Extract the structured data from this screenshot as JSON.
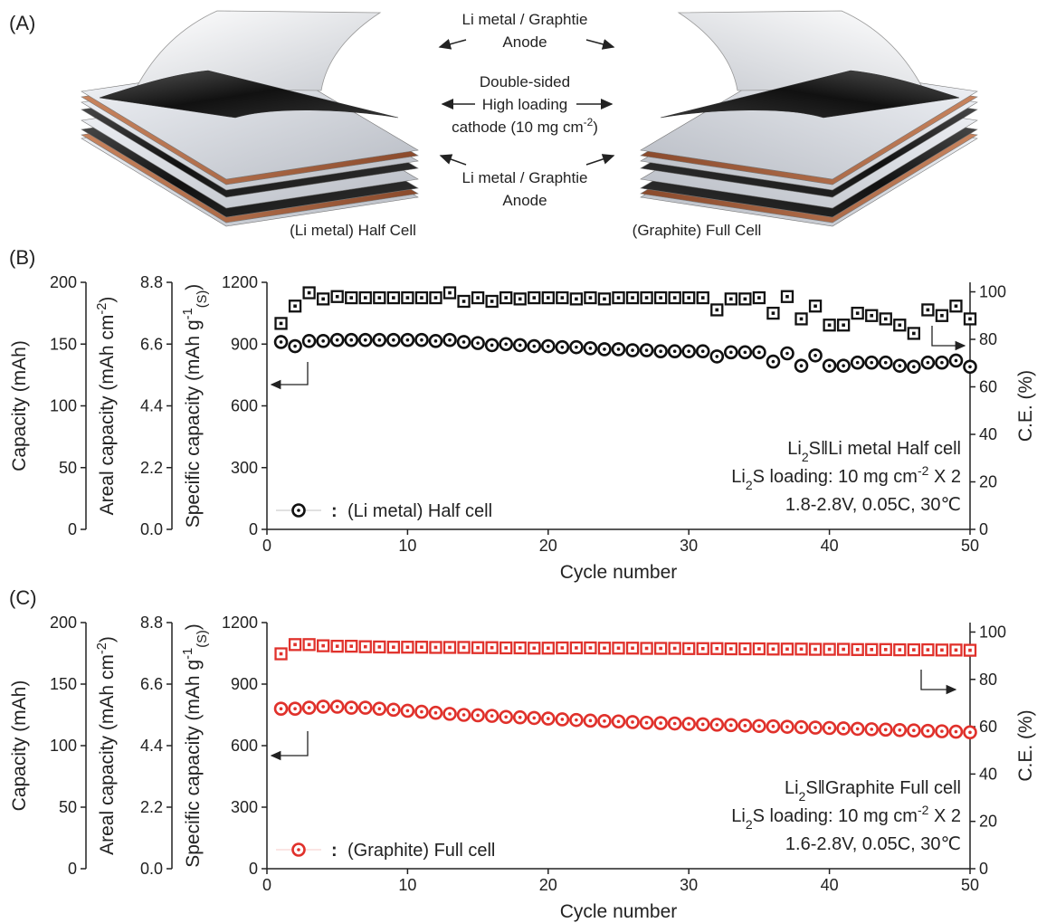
{
  "illustration": {
    "panel": "(A)",
    "top_label": [
      "Li metal / Graphtie",
      "Anode"
    ],
    "middle_label": [
      [
        {
          "text": "Double-sided"
        }
      ],
      [
        {
          "text": "High loading"
        }
      ],
      [
        {
          "text": "cathode (10 mg cm"
        },
        {
          "text": "-2",
          "sup": true
        },
        {
          "text": ")"
        }
      ]
    ],
    "bottom_label": [
      "Li metal / Graphtie",
      "Anode"
    ],
    "left_caption": "(Li metal) Half Cell",
    "right_caption": "(Graphite) Full Cell"
  },
  "chart_data": [
    {
      "type": "scatter",
      "panel": "(B)",
      "xlabel": "Cycle number",
      "xlim": [
        0,
        50
      ],
      "xticks": [
        0,
        10,
        20,
        30,
        40,
        50
      ],
      "ylabel": [
        {
          "text": "Specific capacity (mAh g"
        },
        {
          "text": "-1",
          "sup": true
        },
        {
          "text": "(S)",
          "sub": true
        },
        {
          "text": ")"
        }
      ],
      "ylim": [
        0,
        1200
      ],
      "yticks": [
        0,
        300,
        600,
        900,
        1200
      ],
      "y2label": "C.E. (%)",
      "y2lim": [
        0,
        104
      ],
      "y2ticks": [
        0,
        20,
        40,
        60,
        80,
        100
      ],
      "extra_axes": [
        {
          "label": [
            {
              "text": "Areal capacity (mAh cm"
            },
            {
              "text": "-2",
              "sup": true
            },
            {
              "text": ")"
            }
          ],
          "lim": [
            0,
            8.8
          ],
          "ticks": [
            {
              "value": 0,
              "label": "0.0"
            },
            2.2,
            4.4,
            6.6,
            8.8
          ]
        },
        {
          "label": [
            {
              "text": "Capacity (mAh)"
            }
          ],
          "lim": [
            0,
            200
          ],
          "ticks": [
            0,
            50,
            100,
            150,
            200
          ]
        }
      ],
      "x": [
        1,
        2,
        3,
        4,
        5,
        6,
        7,
        8,
        9,
        10,
        11,
        12,
        13,
        14,
        15,
        16,
        17,
        18,
        19,
        20,
        21,
        22,
        23,
        24,
        25,
        26,
        27,
        28,
        29,
        30,
        31,
        32,
        33,
        34,
        35,
        36,
        37,
        38,
        39,
        40,
        41,
        42,
        43,
        44,
        45,
        46,
        47,
        48,
        49,
        50
      ],
      "series": [
        {
          "name": "(Li metal) Half cell",
          "color": "#111111",
          "marker": "circle",
          "values": [
            910,
            890,
            915,
            915,
            920,
            920,
            920,
            920,
            920,
            920,
            920,
            915,
            920,
            910,
            905,
            895,
            900,
            895,
            890,
            890,
            885,
            885,
            880,
            875,
            875,
            870,
            870,
            865,
            865,
            865,
            865,
            840,
            860,
            860,
            860,
            815,
            855,
            795,
            845,
            795,
            795,
            810,
            810,
            810,
            795,
            790,
            810,
            810,
            820,
            790
          ]
        },
        {
          "color": "#111111",
          "marker": "square",
          "axis": "y2",
          "values": [
            86.7,
            94,
            99.6,
            97,
            98,
            97.5,
            97.5,
            97.5,
            97.5,
            97.5,
            97.5,
            97.5,
            99.6,
            96,
            97.5,
            96,
            97.5,
            97,
            97.5,
            97.5,
            97.5,
            97,
            97.5,
            97,
            97.5,
            97.5,
            97.5,
            97.5,
            97.5,
            97.5,
            97.5,
            92.4,
            97,
            97,
            97.5,
            91,
            98,
            88.6,
            94,
            86,
            86,
            91,
            90,
            88.6,
            86,
            82.5,
            92.4,
            90,
            94,
            88.6
          ]
        }
      ],
      "legend_colon": ":",
      "annotations": [
        [
          {
            "text": "Li"
          },
          {
            "text": "2",
            "sub": true
          },
          {
            "text": "S‖Li metal Half cell"
          }
        ],
        [
          {
            "text": "Li"
          },
          {
            "text": "2",
            "sub": true
          },
          {
            "text": "S loading: 10 mg cm"
          },
          {
            "text": "-2",
            "sup": true
          },
          {
            "text": " X 2"
          }
        ],
        [
          {
            "text": "1.8-2.8V, 0.05C, 30℃"
          }
        ]
      ]
    },
    {
      "type": "scatter",
      "panel": "(C)",
      "xlabel": "Cycle number",
      "xlim": [
        0,
        50
      ],
      "xticks": [
        0,
        10,
        20,
        30,
        40,
        50
      ],
      "ylabel": [
        {
          "text": "Specific capacity (mAh g"
        },
        {
          "text": "-1",
          "sup": true
        },
        {
          "text": "(S)",
          "sub": true
        },
        {
          "text": ")"
        }
      ],
      "ylim": [
        0,
        1200
      ],
      "yticks": [
        0,
        300,
        600,
        900,
        1200
      ],
      "y2label": "C.E. (%)",
      "y2lim": [
        0,
        104
      ],
      "y2ticks": [
        0,
        20,
        40,
        60,
        80,
        100
      ],
      "extra_axes": [
        {
          "label": [
            {
              "text": "Areal capacity (mAh cm"
            },
            {
              "text": "-2",
              "sup": true
            },
            {
              "text": ")"
            }
          ],
          "lim": [
            0,
            8.8
          ],
          "ticks": [
            {
              "value": 0,
              "label": "0.0"
            },
            2.2,
            4.4,
            6.6,
            8.8
          ]
        },
        {
          "label": [
            {
              "text": "Capacity (mAh)"
            }
          ],
          "lim": [
            0,
            200
          ],
          "ticks": [
            0,
            50,
            100,
            150,
            200
          ]
        }
      ],
      "x": [
        1,
        2,
        3,
        4,
        5,
        6,
        7,
        8,
        9,
        10,
        11,
        12,
        13,
        14,
        15,
        16,
        17,
        18,
        19,
        20,
        21,
        22,
        23,
        24,
        25,
        26,
        27,
        28,
        29,
        30,
        31,
        32,
        33,
        34,
        35,
        36,
        37,
        38,
        39,
        40,
        41,
        42,
        43,
        44,
        45,
        46,
        47,
        48,
        49,
        50
      ],
      "series": [
        {
          "name": "(Graphite) Full cell",
          "color": "#e0312b",
          "marker": "circle",
          "values": [
            780,
            780,
            785,
            790,
            790,
            785,
            785,
            780,
            775,
            770,
            765,
            760,
            755,
            750,
            748,
            745,
            740,
            738,
            735,
            732,
            728,
            725,
            722,
            720,
            718,
            715,
            712,
            710,
            708,
            706,
            704,
            702,
            700,
            698,
            696,
            694,
            692,
            690,
            688,
            686,
            684,
            682,
            680,
            678,
            676,
            674,
            672,
            670,
            668,
            665
          ]
        },
        {
          "color": "#e0312b",
          "marker": "square",
          "axis": "y2",
          "values": [
            90.8,
            94.7,
            94.7,
            94.2,
            94,
            94,
            93.8,
            93.7,
            93.6,
            93.6,
            93.6,
            93.5,
            93.5,
            93.5,
            93.4,
            93.4,
            93.3,
            93.3,
            93.2,
            93.2,
            93.3,
            93.3,
            93.3,
            93.2,
            93.2,
            93.2,
            93.1,
            93.1,
            93.1,
            93.0,
            93.0,
            93.0,
            92.9,
            92.9,
            92.9,
            92.8,
            92.8,
            92.8,
            92.7,
            92.7,
            92.7,
            92.6,
            92.6,
            92.6,
            92.5,
            92.5,
            92.5,
            92.4,
            92.4,
            92.3
          ]
        }
      ],
      "legend_colon": ":",
      "annotations": [
        [
          {
            "text": "Li"
          },
          {
            "text": "2",
            "sub": true
          },
          {
            "text": "S‖Graphite Full cell"
          }
        ],
        [
          {
            "text": "Li"
          },
          {
            "text": "2",
            "sub": true
          },
          {
            "text": "S loading: 10 mg cm"
          },
          {
            "text": "-2",
            "sup": true
          },
          {
            "text": " X 2"
          }
        ],
        [
          {
            "text": "1.6-2.8V, 0.05C, 30℃"
          }
        ]
      ]
    }
  ]
}
